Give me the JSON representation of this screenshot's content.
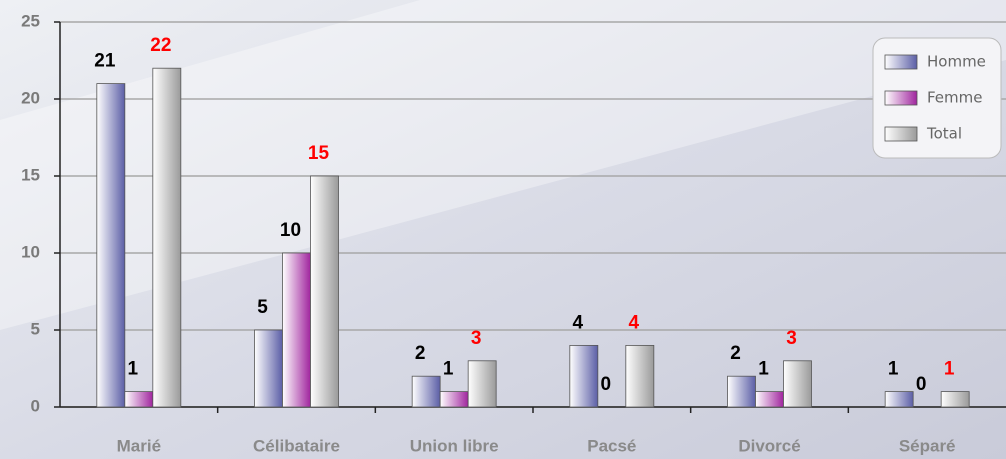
{
  "chart_data": {
    "type": "bar",
    "categories": [
      "Marié",
      "Célibataire",
      "Union libre",
      "Pacsé",
      "Divorcé",
      "Séparé"
    ],
    "series": [
      {
        "name": "Homme",
        "color": "#5b5ea6",
        "label_color": "#000000",
        "values": [
          21,
          5,
          2,
          4,
          2,
          1
        ]
      },
      {
        "name": "Femme",
        "color": "#a0259e",
        "label_color": "#000000",
        "values": [
          1,
          10,
          1,
          0,
          1,
          0
        ]
      },
      {
        "name": "Total",
        "color": "#9a9a9a",
        "label_color": "#ff0000",
        "values": [
          22,
          15,
          3,
          4,
          3,
          1
        ]
      }
    ],
    "ylim": [
      0,
      25
    ],
    "yticks": [
      0,
      5,
      10,
      15,
      20,
      25
    ],
    "grid": true,
    "legend": "upper right"
  }
}
